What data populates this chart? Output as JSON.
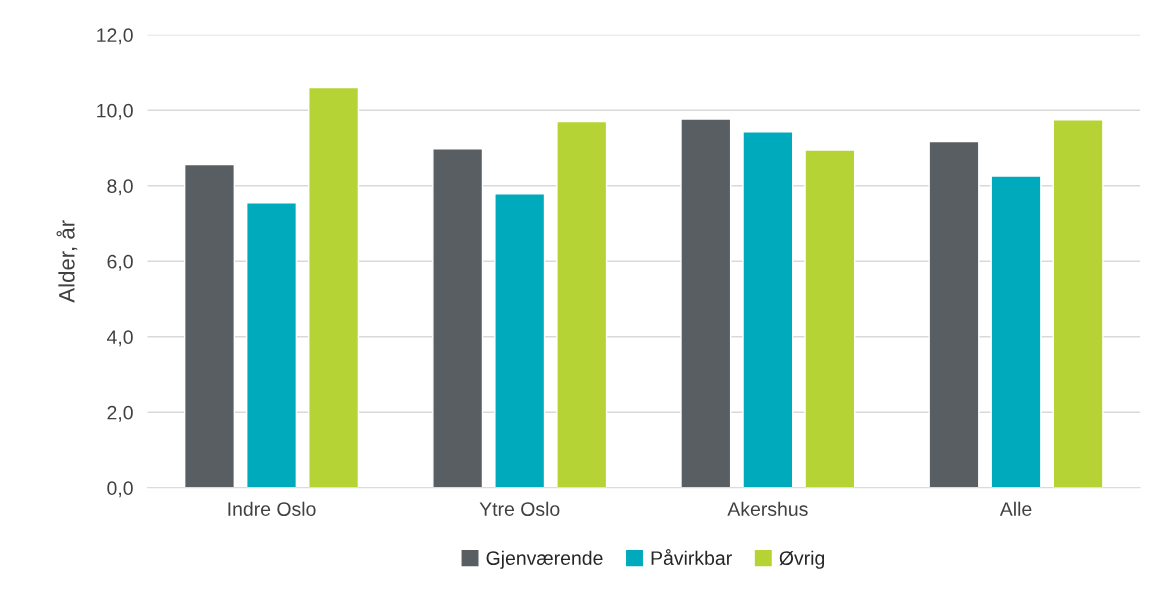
{
  "chart_data": {
    "type": "bar",
    "ylabel": "Alder, år",
    "categories": [
      "Indre Oslo",
      "Ytre Oslo",
      "Akershus",
      "Alle"
    ],
    "series": [
      {
        "name": "Gjenværende",
        "color": "#595e62",
        "values": [
          8.56,
          8.98,
          9.77,
          9.17
        ]
      },
      {
        "name": "Påvirkbar",
        "color": "#00aabd",
        "values": [
          7.55,
          7.79,
          9.43,
          8.26
        ]
      },
      {
        "name": "Øvrig",
        "color": "#b5d334",
        "values": [
          10.6,
          9.7,
          8.95,
          9.75
        ]
      }
    ],
    "ylim": [
      0,
      12
    ],
    "yticks": [
      {
        "value": 0,
        "label": "0,0"
      },
      {
        "value": 2,
        "label": "2,0"
      },
      {
        "value": 4,
        "label": "4,0"
      },
      {
        "value": 6,
        "label": "6,0"
      },
      {
        "value": 8,
        "label": "8,0"
      },
      {
        "value": 10,
        "label": "10,0"
      },
      {
        "value": 12,
        "label": "12,0"
      }
    ],
    "grid": "y",
    "legend": "bottom"
  }
}
